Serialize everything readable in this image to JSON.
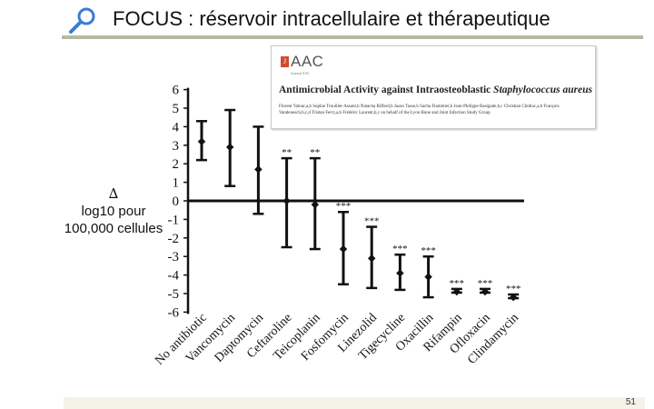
{
  "slide": {
    "title": "FOCUS : réservoir intracellulaire et thérapeutique",
    "page_number": "51",
    "icon": "magnifier-icon"
  },
  "y_side_label": {
    "delta": "∆",
    "line1": "log10 pour",
    "line2": "100,000 cellules"
  },
  "article": {
    "journal_logo": "AAC",
    "journal_sub": "Journal AAC",
    "title_plain": "Antimicrobial Activity against Intraosteoblastic ",
    "title_italic": "Staphylococcus aureus",
    "authors": "Florent Valour,a,b Sophie Trouillet-Assant,b Natacha Riffard,b Jason Tasse,b Sacha Flammier,b Jean-Philippe Rasigade,b,c Christian Chidiac,a,b François Vandenesch,b,c,d Tristan Ferry,a,b Frédéric Laurent,b,c on behalf of the Lyon Bone and Joint Infection Study Group"
  },
  "chart_data": {
    "type": "scatter",
    "error_bars": true,
    "ylim": [
      -6,
      6
    ],
    "yticks": [
      6,
      5,
      4,
      3,
      2,
      1,
      0,
      -1,
      -2,
      -3,
      -4,
      -5,
      -6
    ],
    "grid": false,
    "categories": [
      "No antibiotic",
      "Vancomycin",
      "Daptomycin",
      "Ceftaroline",
      "Teicoplanin",
      "Fosfomycin",
      "Linezolid",
      "Tigecycline",
      "Oxacillin",
      "Rifampin",
      "Ofloxacin",
      "Clindamycin"
    ],
    "values": [
      3.2,
      2.9,
      1.7,
      0.0,
      -0.2,
      -2.6,
      -3.1,
      -3.9,
      -4.1,
      -4.9,
      -4.9,
      -5.2
    ],
    "err_low": [
      2.2,
      0.8,
      -0.7,
      -2.5,
      -2.6,
      -4.5,
      -4.7,
      -4.8,
      -5.2,
      -4.95,
      -4.95,
      -5.25
    ],
    "err_high": [
      4.3,
      4.9,
      4.0,
      2.3,
      2.3,
      -0.6,
      -1.4,
      -2.9,
      -3.0,
      -4.75,
      -4.75,
      -5.05
    ],
    "significance": [
      "",
      "",
      "",
      "**",
      "**",
      "***",
      "***",
      "***",
      "***",
      "***",
      "***",
      "***"
    ]
  }
}
